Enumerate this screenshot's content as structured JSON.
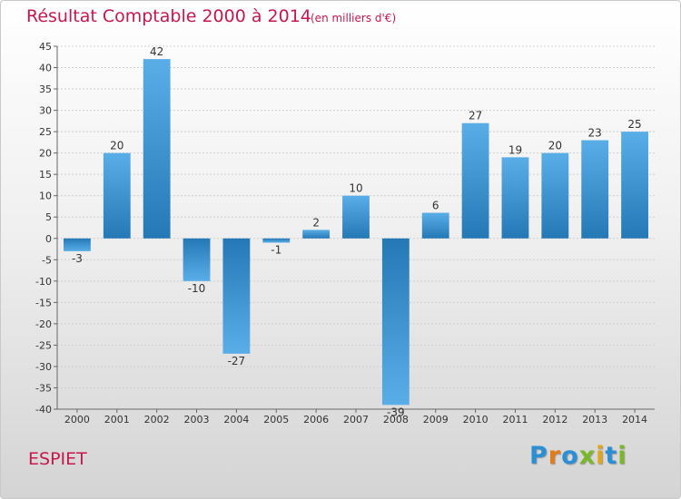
{
  "header": {
    "title": "Résultat Comptable 2000 à 2014",
    "subtitle": "(en milliers d'€)"
  },
  "footer": {
    "commune": "ESPIET",
    "logo": {
      "letters": [
        "P",
        "r",
        "o",
        "x",
        "i",
        "t",
        "i"
      ],
      "colors": [
        "#2b8fd6",
        "#e37b17",
        "#2b8fd6",
        "#7ab829",
        "#e3a617",
        "#2b8fd6",
        "#7ab829"
      ]
    }
  },
  "colors": {
    "title": "#c8174e",
    "bar_light": "#5aaee8",
    "bar_dark": "#2478b5",
    "grid": "#cfcfcf"
  },
  "chart_data": {
    "type": "bar",
    "title": "Résultat Comptable 2000 à 2014",
    "subtitle": "(en milliers d'€)",
    "categories": [
      "2000",
      "2001",
      "2002",
      "2003",
      "2004",
      "2005",
      "2006",
      "2007",
      "2008",
      "2009",
      "2010",
      "2011",
      "2012",
      "2013",
      "2014"
    ],
    "values": [
      -3,
      20,
      42,
      -10,
      -27,
      -1,
      2,
      10,
      -39,
      6,
      27,
      19,
      20,
      23,
      25
    ],
    "ylim": [
      -40,
      45
    ],
    "yticks": [
      45,
      40,
      35,
      30,
      25,
      20,
      15,
      10,
      5,
      0,
      -5,
      -10,
      -15,
      -20,
      -25,
      -30,
      -35,
      -40
    ],
    "grid": true,
    "legend": "none"
  }
}
